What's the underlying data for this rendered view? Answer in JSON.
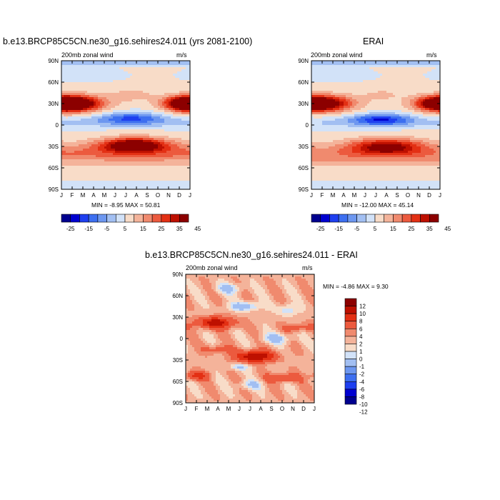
{
  "palette": [
    "#00008f",
    "#0000d0",
    "#1e3ff0",
    "#3d6ff0",
    "#6d97f0",
    "#a2bff2",
    "#d2e2f8",
    "#f8dcc8",
    "#f4b39a",
    "#f08a6e",
    "#ec5a3e",
    "#e33014",
    "#be1000",
    "#8c0000"
  ],
  "chart_data": [
    {
      "id": "model",
      "type": "heatmap",
      "title": "b.e13.BRCP85C5CN.ne30_g16.sehires24.011 (yrs 2081-2100)",
      "left_label": "200mb zonal wind",
      "right_label": "m/s",
      "x_ticks": [
        "J",
        "F",
        "M",
        "A",
        "M",
        "J",
        "J",
        "A",
        "S",
        "O",
        "N",
        "D",
        "J"
      ],
      "y_ticks": [
        "90N",
        "60N",
        "30N",
        "0",
        "30S",
        "60S",
        "90S"
      ],
      "ylim": [
        -90,
        90
      ],
      "stats": "MIN =  -8.95 MAX =  50.81",
      "stats_min": -8.95,
      "stats_max": 50.81,
      "colorbar": {
        "orientation": "horizontal",
        "levels": [
          -25,
          -20,
          -15,
          -10,
          -5,
          0,
          5,
          10,
          15,
          20,
          25,
          30,
          35,
          40,
          45
        ],
        "labels": [
          "-25",
          "-15",
          "-5",
          "5",
          "15",
          "25",
          "35",
          "45"
        ]
      }
    },
    {
      "id": "erai",
      "type": "heatmap",
      "title": "ERAI",
      "left_label": "200mb zonal wind",
      "right_label": "m/s",
      "x_ticks": [
        "J",
        "F",
        "M",
        "A",
        "M",
        "J",
        "J",
        "A",
        "S",
        "O",
        "N",
        "D",
        "J"
      ],
      "y_ticks": [
        "90N",
        "60N",
        "30N",
        "0",
        "30S",
        "60S",
        "90S"
      ],
      "ylim": [
        -90,
        90
      ],
      "stats": "MIN = -12.00 MAX =  45.14",
      "stats_min": -12.0,
      "stats_max": 45.14,
      "colorbar": {
        "orientation": "horizontal",
        "levels": [
          -25,
          -20,
          -15,
          -10,
          -5,
          0,
          5,
          10,
          15,
          20,
          25,
          30,
          35,
          40,
          45
        ],
        "labels": [
          "-25",
          "-15",
          "-5",
          "5",
          "15",
          "25",
          "35",
          "45"
        ]
      }
    },
    {
      "id": "diff",
      "type": "heatmap",
      "title": "b.e13.BRCP85C5CN.ne30_g16.sehires24.011 - ERAI",
      "left_label": "200mb zonal wind",
      "right_label": "m/s",
      "x_ticks": [
        "J",
        "F",
        "M",
        "A",
        "M",
        "J",
        "J",
        "A",
        "S",
        "O",
        "N",
        "D",
        "J"
      ],
      "y_ticks": [
        "90N",
        "60N",
        "30N",
        "0",
        "30S",
        "60S",
        "90S"
      ],
      "ylim": [
        -90,
        90
      ],
      "stats": "MIN =  -4.86 MAX =   9.30",
      "stats_min": -4.86,
      "stats_max": 9.3,
      "colorbar": {
        "orientation": "vertical",
        "levels": [
          -12,
          -10,
          -8,
          -6,
          -4,
          -2,
          -1,
          0,
          1,
          2,
          4,
          6,
          8,
          10,
          12
        ],
        "labels": [
          "12",
          "10",
          "8",
          "6",
          "4",
          "2",
          "1",
          "0",
          "-1",
          "-2",
          "-4",
          "-6",
          "-8",
          "-10",
          "-12"
        ]
      }
    }
  ]
}
